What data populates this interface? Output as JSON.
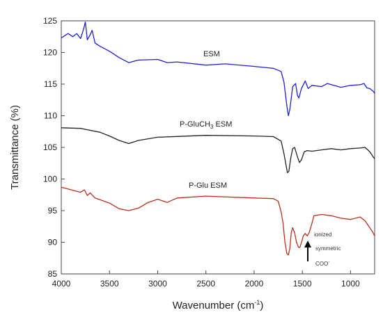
{
  "chart_data": {
    "type": "line",
    "xlabel": "Wavenumber (cm",
    "xlabel_sup": "-1",
    "xlabel_tail": ")",
    "ylabel": "Transmittance (%)",
    "xlim": [
      4000,
      750
    ],
    "ylim": [
      85,
      125
    ],
    "x_ticks": [
      4000,
      3500,
      3000,
      2500,
      2000,
      1500,
      1000
    ],
    "y_ticks": [
      85,
      90,
      95,
      100,
      105,
      110,
      115,
      120,
      125
    ],
    "grid": false,
    "series": [
      {
        "name": "ESM",
        "color": "#1f1fd6",
        "points": [
          [
            4000,
            122.3
          ],
          [
            3930,
            123.0
          ],
          [
            3880,
            122.5
          ],
          [
            3840,
            123.0
          ],
          [
            3800,
            122.2
          ],
          [
            3770,
            123.6
          ],
          [
            3750,
            124.8
          ],
          [
            3730,
            122.0
          ],
          [
            3700,
            122.8
          ],
          [
            3680,
            123.5
          ],
          [
            3650,
            121.5
          ],
          [
            3600,
            121.0
          ],
          [
            3500,
            120.2
          ],
          [
            3400,
            119.2
          ],
          [
            3300,
            118.4
          ],
          [
            3200,
            118.8
          ],
          [
            3000,
            118.9
          ],
          [
            2900,
            118.4
          ],
          [
            2800,
            118.5
          ],
          [
            2500,
            118.0
          ],
          [
            2300,
            118.2
          ],
          [
            2000,
            117.8
          ],
          [
            1800,
            117.5
          ],
          [
            1720,
            117.0
          ],
          [
            1690,
            115.3
          ],
          [
            1660,
            111.5
          ],
          [
            1645,
            110.0
          ],
          [
            1630,
            111.0
          ],
          [
            1600,
            114.6
          ],
          [
            1570,
            115.1
          ],
          [
            1550,
            113.2
          ],
          [
            1535,
            112.8
          ],
          [
            1510,
            114.3
          ],
          [
            1470,
            115.5
          ],
          [
            1440,
            114.3
          ],
          [
            1400,
            114.8
          ],
          [
            1300,
            114.6
          ],
          [
            1240,
            115.1
          ],
          [
            1100,
            114.5
          ],
          [
            1000,
            114.8
          ],
          [
            900,
            114.9
          ],
          [
            860,
            115.1
          ],
          [
            830,
            114.4
          ],
          [
            800,
            114.3
          ],
          [
            760,
            113.8
          ],
          [
            750,
            113.5
          ]
        ]
      },
      {
        "name": "P-GluCH",
        "name_sub": "3",
        "name_tail": " ESM",
        "color": "#222222",
        "points": [
          [
            4000,
            108.1
          ],
          [
            3800,
            108.0
          ],
          [
            3600,
            107.4
          ],
          [
            3500,
            106.8
          ],
          [
            3400,
            106.1
          ],
          [
            3300,
            105.6
          ],
          [
            3200,
            106.1
          ],
          [
            3000,
            106.6
          ],
          [
            2500,
            106.9
          ],
          [
            2000,
            106.8
          ],
          [
            1800,
            106.7
          ],
          [
            1720,
            106.0
          ],
          [
            1690,
            104.0
          ],
          [
            1670,
            102.3
          ],
          [
            1655,
            101.0
          ],
          [
            1640,
            101.2
          ],
          [
            1620,
            103.3
          ],
          [
            1600,
            104.8
          ],
          [
            1580,
            105.0
          ],
          [
            1550,
            103.5
          ],
          [
            1530,
            102.6
          ],
          [
            1510,
            103.0
          ],
          [
            1480,
            104.3
          ],
          [
            1450,
            104.5
          ],
          [
            1400,
            104.4
          ],
          [
            1300,
            104.6
          ],
          [
            1200,
            104.8
          ],
          [
            1100,
            104.6
          ],
          [
            1000,
            104.8
          ],
          [
            900,
            104.9
          ],
          [
            850,
            105.0
          ],
          [
            800,
            104.3
          ],
          [
            770,
            103.6
          ],
          [
            750,
            103.2
          ]
        ]
      },
      {
        "name": "P-Glu ESM",
        "color": "#b83020",
        "points": [
          [
            4000,
            98.7
          ],
          [
            3800,
            97.9
          ],
          [
            3760,
            98.3
          ],
          [
            3730,
            97.4
          ],
          [
            3700,
            97.8
          ],
          [
            3650,
            97.0
          ],
          [
            3500,
            96.2
          ],
          [
            3400,
            95.3
          ],
          [
            3300,
            95.0
          ],
          [
            3200,
            95.4
          ],
          [
            3100,
            96.3
          ],
          [
            3000,
            96.8
          ],
          [
            2900,
            96.3
          ],
          [
            2800,
            97.0
          ],
          [
            2500,
            97.3
          ],
          [
            2000,
            97.0
          ],
          [
            1800,
            96.9
          ],
          [
            1750,
            96.5
          ],
          [
            1720,
            94.8
          ],
          [
            1700,
            93.0
          ],
          [
            1680,
            90.0
          ],
          [
            1660,
            88.2
          ],
          [
            1645,
            88.0
          ],
          [
            1630,
            89.0
          ],
          [
            1615,
            91.5
          ],
          [
            1600,
            92.3
          ],
          [
            1580,
            91.5
          ],
          [
            1560,
            90.0
          ],
          [
            1540,
            89.2
          ],
          [
            1525,
            89.2
          ],
          [
            1505,
            90.2
          ],
          [
            1490,
            91.0
          ],
          [
            1470,
            91.4
          ],
          [
            1450,
            91.0
          ],
          [
            1430,
            91.5
          ],
          [
            1400,
            93.0
          ],
          [
            1380,
            94.2
          ],
          [
            1300,
            94.4
          ],
          [
            1200,
            94.2
          ],
          [
            1100,
            93.8
          ],
          [
            1000,
            93.6
          ],
          [
            900,
            94.0
          ],
          [
            850,
            93.4
          ],
          [
            800,
            92.3
          ],
          [
            770,
            91.6
          ],
          [
            750,
            91.0
          ]
        ]
      }
    ],
    "annotations": {
      "lines": [
        "ionized",
        "symmetric",
        "COO",
        "-"
      ]
    }
  }
}
